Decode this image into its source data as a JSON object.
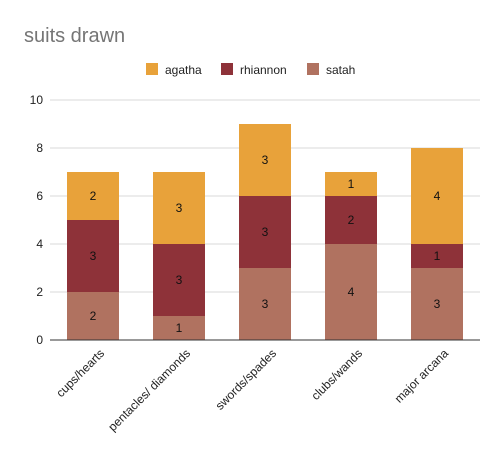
{
  "chart_data": {
    "type": "bar",
    "stacked": true,
    "title": "suits drawn",
    "xlabel": "",
    "ylabel": "",
    "categories": [
      "cups/hearts",
      "pentacles/ diamonds",
      "swords/spades",
      "clubs/wands",
      "major arcana"
    ],
    "series": [
      {
        "name": "satah",
        "color": "#b07260",
        "values": [
          2,
          1,
          3,
          4,
          3
        ]
      },
      {
        "name": "rhiannon",
        "color": "#8e3239",
        "values": [
          3,
          3,
          3,
          2,
          1
        ]
      },
      {
        "name": "agatha",
        "color": "#e8a23a",
        "values": [
          2,
          3,
          3,
          1,
          4
        ]
      }
    ],
    "legend_order": [
      "agatha",
      "rhiannon",
      "satah"
    ],
    "legend_position": "top",
    "ylim": [
      0,
      10
    ],
    "yticks": [
      0,
      2,
      4,
      6,
      8,
      10
    ],
    "grid": true,
    "data_labels": true
  }
}
